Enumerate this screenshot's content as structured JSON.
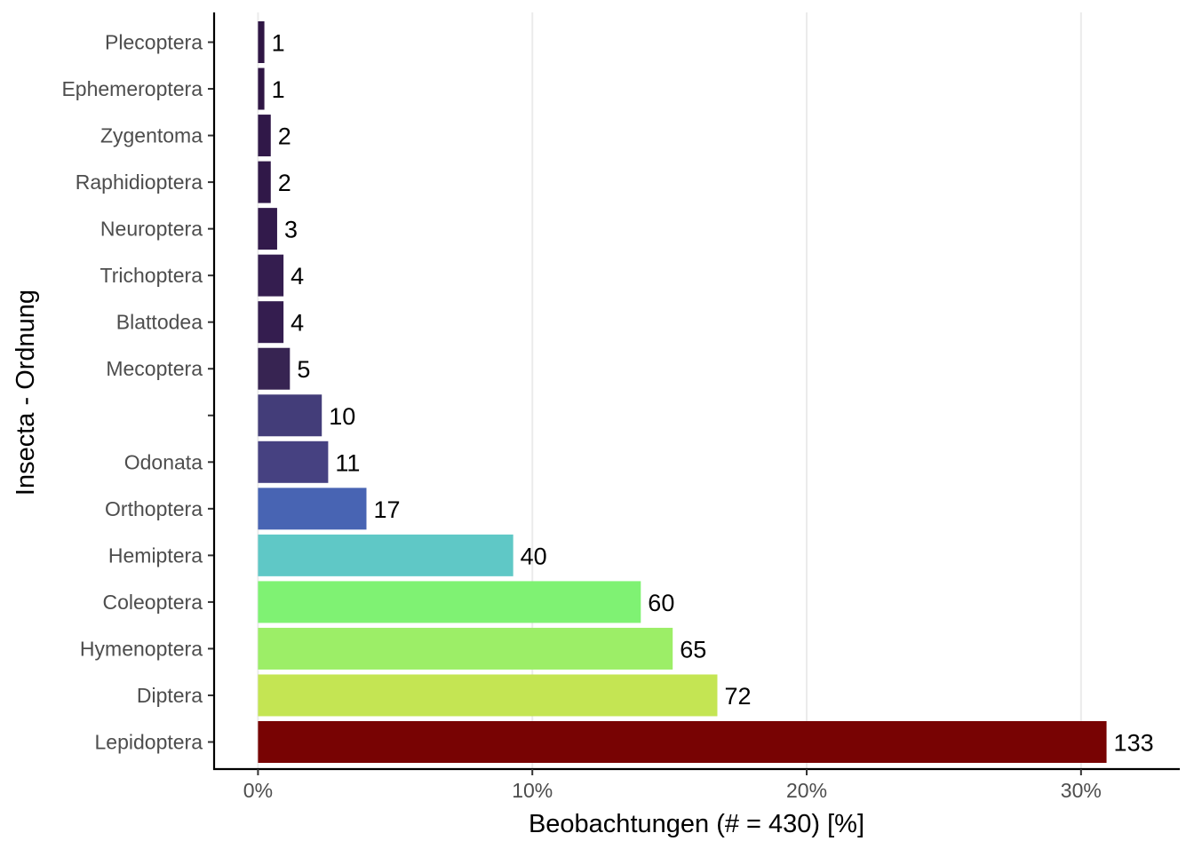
{
  "chart_data": {
    "type": "bar",
    "orientation": "horizontal",
    "xlabel": "Beobachtungen (# = 430) [%]",
    "ylabel": "Insecta - Ordnung",
    "total": 430,
    "xlim": [
      -0.016,
      0.336
    ],
    "xticks": [
      {
        "value": 0.0,
        "label": "0%"
      },
      {
        "value": 0.1,
        "label": "10%"
      },
      {
        "value": 0.2,
        "label": "20%"
      },
      {
        "value": 0.3,
        "label": "30%"
      }
    ],
    "grid": "vertical major lines",
    "legend": "none",
    "categories": [
      "Plecoptera",
      "Ephemeroptera",
      "Zygentoma",
      "Raphidioptera",
      "Neuroptera",
      "Trichoptera",
      "Blattodea",
      "Mecoptera",
      "",
      "Odonata",
      "Orthoptera",
      "Hemiptera",
      "Coleoptera",
      "Hymenoptera",
      "Diptera",
      "Lepidoptera"
    ],
    "counts": [
      1,
      1,
      2,
      2,
      3,
      4,
      4,
      5,
      10,
      11,
      17,
      40,
      60,
      65,
      72,
      133
    ],
    "labels": [
      "1",
      "1",
      "2",
      "2",
      "3",
      "4",
      "4",
      "5",
      "10",
      "11",
      "17",
      "40",
      "60",
      "65",
      "72",
      "133"
    ],
    "colors": [
      "#2f1644",
      "#2f1644",
      "#301848",
      "#301848",
      "#321a4b",
      "#341d4f",
      "#341d4f",
      "#372452",
      "#433d79",
      "#464181",
      "#4864b3",
      "#5fc8c6",
      "#7ff273",
      "#9cee67",
      "#c4e553",
      "#780303"
    ]
  }
}
